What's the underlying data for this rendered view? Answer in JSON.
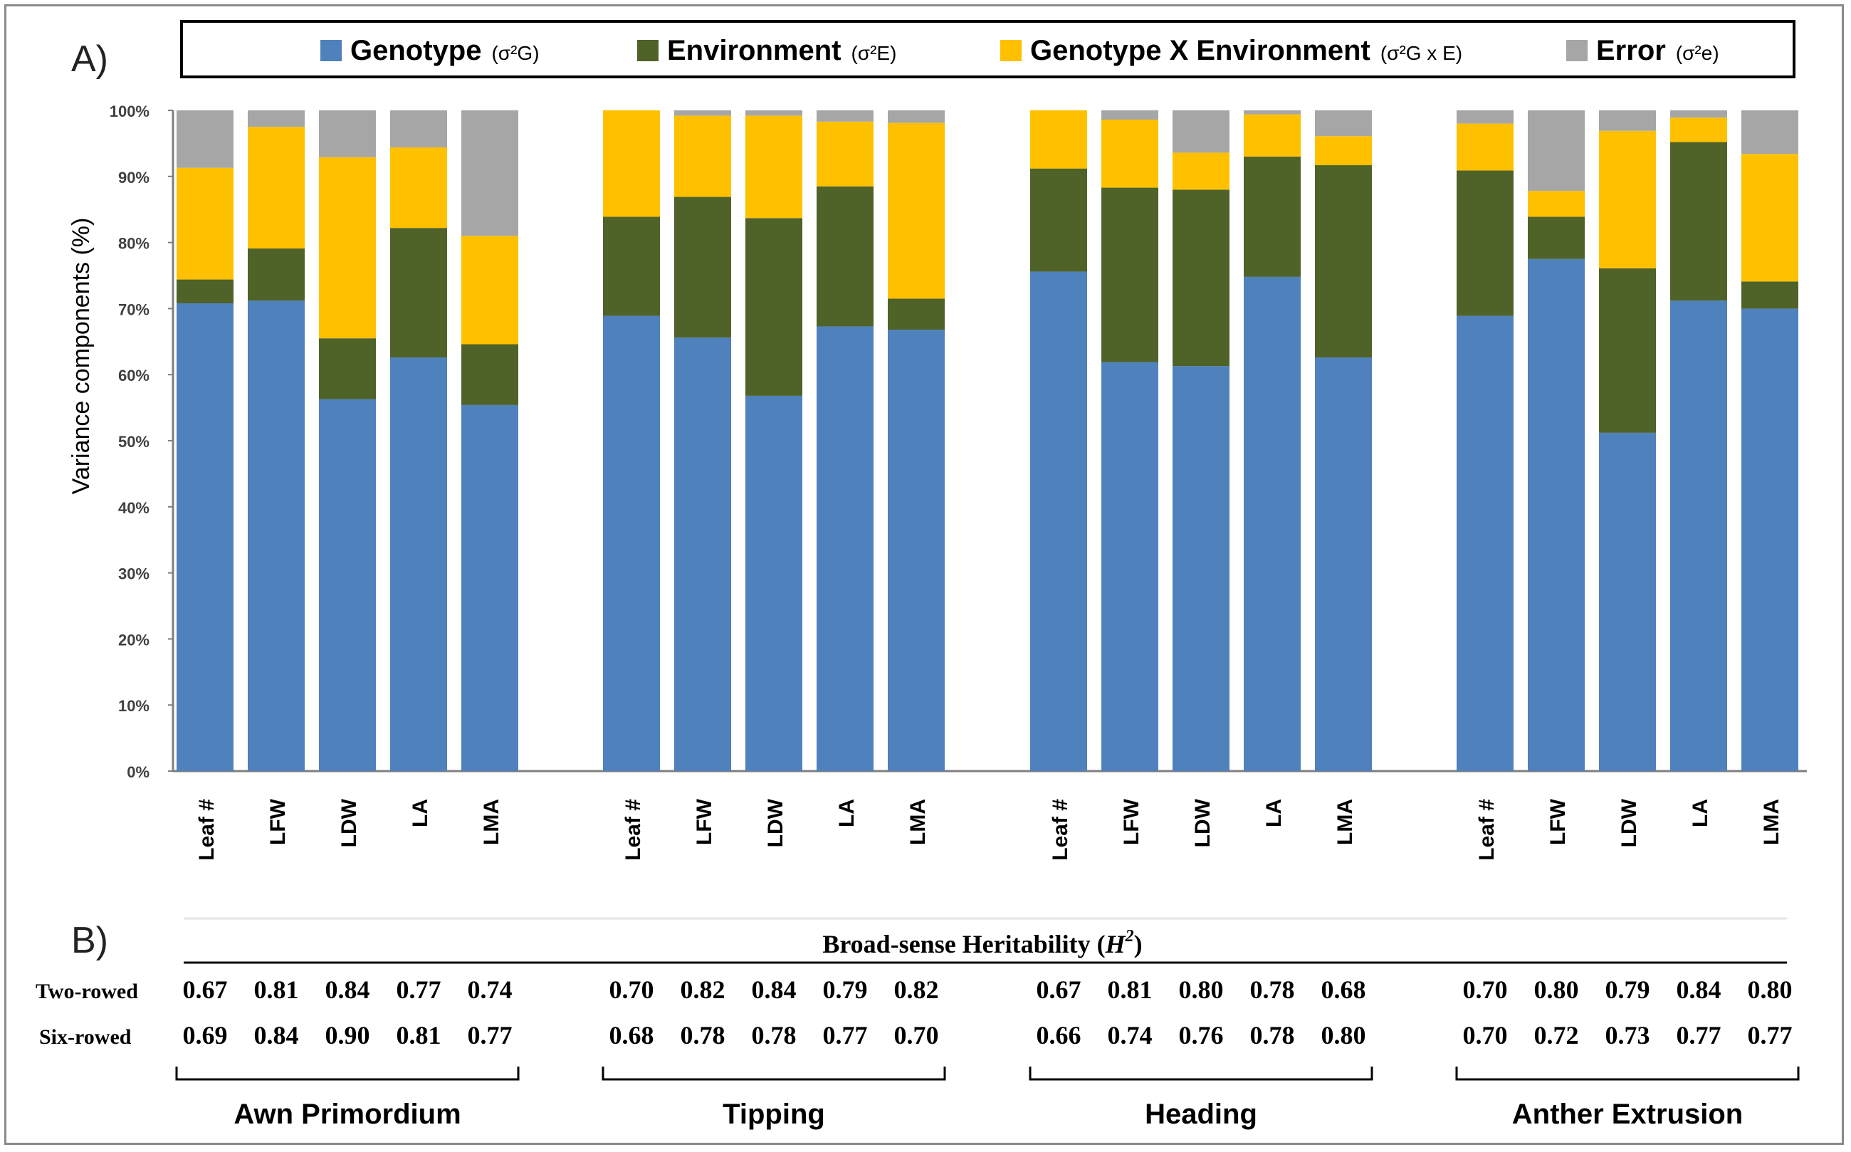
{
  "chart_data": {
    "type": "bar",
    "stacked": true,
    "panel_a_label": "A)",
    "panel_b_label": "B)",
    "ylabel": "Variance components (%)",
    "ylim": [
      0,
      100
    ],
    "yticks": [
      "0%",
      "10%",
      "20%",
      "30%",
      "40%",
      "50%",
      "60%",
      "70%",
      "80%",
      "90%",
      "100%"
    ],
    "grid": false,
    "legend_position": "top",
    "legend": [
      {
        "name": "Genotype",
        "symbol": "(σ²G)",
        "color": "#4f81bd"
      },
      {
        "name": "Environment",
        "symbol": "(σ²E)",
        "color": "#4f6228"
      },
      {
        "name": "Genotype X Environment",
        "symbol": "(σ²G x E)",
        "color": "#ffc000"
      },
      {
        "name": "Error",
        "symbol": "(σ²e)",
        "color": "#a6a6a6"
      }
    ],
    "groups": [
      {
        "name": "Awn Primordium",
        "categories": [
          "Leaf #",
          "LFW",
          "LDW",
          "LA",
          "LMA"
        ],
        "genotype": [
          70.8,
          71.2,
          56.3,
          62.6,
          55.4
        ],
        "environment": [
          3.6,
          7.9,
          9.2,
          19.6,
          9.2
        ],
        "gxe": [
          16.9,
          18.4,
          27.4,
          12.2,
          16.4
        ],
        "error": [
          8.7,
          2.5,
          7.1,
          5.6,
          19.0
        ],
        "h2_two_rowed": [
          "0.67",
          "0.81",
          "0.84",
          "0.77",
          "0.74"
        ],
        "h2_six_rowed": [
          "0.69",
          "0.84",
          "0.90",
          "0.81",
          "0.77"
        ]
      },
      {
        "name": "Tipping",
        "categories": [
          "Leaf #",
          "LFW",
          "LDW",
          "LA",
          "LMA"
        ],
        "genotype": [
          68.9,
          65.6,
          56.8,
          67.3,
          66.8
        ],
        "environment": [
          15.0,
          21.3,
          26.9,
          21.2,
          4.7
        ],
        "gxe": [
          16.1,
          12.3,
          15.5,
          9.8,
          26.6
        ],
        "error": [
          0.0,
          0.8,
          0.8,
          1.7,
          1.9
        ],
        "h2_two_rowed": [
          "0.70",
          "0.82",
          "0.84",
          "0.79",
          "0.82"
        ],
        "h2_six_rowed": [
          "0.68",
          "0.78",
          "0.78",
          "0.77",
          "0.70"
        ]
      },
      {
        "name": "Heading",
        "categories": [
          "Leaf #",
          "LFW",
          "LDW",
          "LA",
          "LMA"
        ],
        "genotype": [
          75.6,
          61.9,
          61.3,
          74.8,
          62.6
        ],
        "environment": [
          15.6,
          26.4,
          26.7,
          18.2,
          29.1
        ],
        "gxe": [
          8.8,
          10.3,
          5.6,
          6.4,
          4.4
        ],
        "error": [
          0.0,
          1.4,
          6.4,
          0.6,
          3.9
        ],
        "h2_two_rowed": [
          "0.67",
          "0.81",
          "0.80",
          "0.78",
          "0.68"
        ],
        "h2_six_rowed": [
          "0.66",
          "0.74",
          "0.76",
          "0.78",
          "0.80"
        ]
      },
      {
        "name": "Anther Extrusion",
        "categories": [
          "Leaf #",
          "LFW",
          "LDW",
          "LA",
          "LMA"
        ],
        "genotype": [
          68.9,
          77.5,
          51.2,
          71.2,
          70.0
        ],
        "environment": [
          22.0,
          6.4,
          24.9,
          24.0,
          4.1
        ],
        "gxe": [
          7.1,
          3.9,
          20.8,
          3.7,
          19.3
        ],
        "error": [
          2.0,
          12.2,
          3.1,
          1.1,
          6.6
        ],
        "h2_two_rowed": [
          "0.70",
          "0.80",
          "0.79",
          "0.84",
          "0.80"
        ],
        "h2_six_rowed": [
          "0.70",
          "0.72",
          "0.73",
          "0.77",
          "0.77"
        ]
      }
    ],
    "heritability_table": {
      "title": "Broad-sense Heritability (",
      "title_symbol": "H",
      "title_exponent": "2",
      "title_close": ")",
      "row_labels": [
        "Two-rowed",
        "Six-rowed"
      ]
    }
  }
}
